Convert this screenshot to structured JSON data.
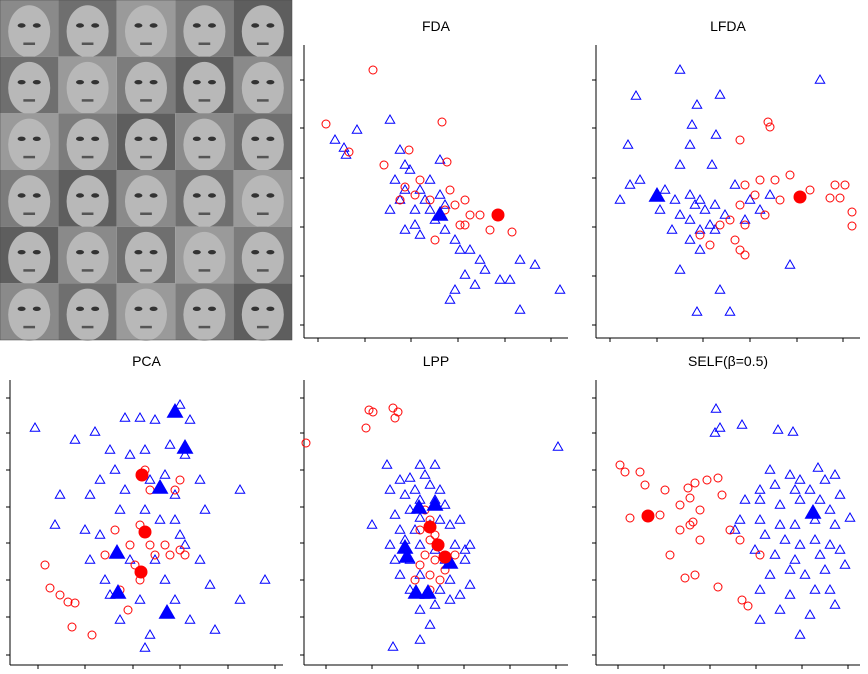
{
  "chart_data": [
    {
      "type": "scatter",
      "title": "FDA",
      "xlim": [
        0,
        264
      ],
      "ylim": [
        0,
        293
      ],
      "xticks": [
        14,
        61,
        107,
        154,
        201,
        247
      ],
      "yticks": [
        13,
        62,
        111,
        160,
        210,
        258
      ],
      "series": [
        {
          "color": "#0000ff",
          "marker": "triangle",
          "filled": false,
          "x": [
            31,
            40,
            53,
            42,
            86,
            96,
            101,
            91,
            106,
            116,
            121,
            111,
            126,
            136,
            131,
            101,
            116,
            141,
            151,
            156,
            166,
            176,
            181,
            171,
            151,
            161,
            196,
            206,
            216,
            231,
            256,
            216,
            146,
            96,
            86,
            101,
            136,
            126,
            141,
            111
          ],
          "y": [
            198,
            190,
            208,
            183,
            218,
            188,
            173,
            158,
            168,
            148,
            138,
            128,
            158,
            143,
            118,
            108,
            103,
            108,
            98,
            88,
            88,
            78,
            68,
            53,
            48,
            63,
            58,
            58,
            78,
            73,
            48,
            28,
            38,
            138,
            128,
            148,
            178,
            128,
            133,
            113
          ]
        },
        {
          "color": "#ff0000",
          "marker": "circle",
          "filled": false,
          "x": [
            69,
            22,
            45,
            80,
            105,
            138,
            143,
            116,
            101,
            126,
            141,
            151,
            161,
            166,
            156,
            176,
            186,
            208,
            131,
            96,
            111,
            146,
            161
          ],
          "y": [
            268,
            214,
            186,
            173,
            188,
            216,
            176,
            158,
            151,
            138,
            128,
            133,
            138,
            123,
            113,
            123,
            108,
            106,
            98,
            138,
            143,
            148,
            113
          ]
        },
        {
          "color": "#0000ff",
          "marker": "triangle",
          "filled": true,
          "x": [
            136
          ],
          "y": [
            123
          ]
        },
        {
          "color": "#ff0000",
          "marker": "circle",
          "filled": true,
          "x": [
            194
          ],
          "y": [
            123
          ]
        }
      ]
    },
    {
      "type": "scatter",
      "title": "LFDA",
      "xlim": [
        0,
        264
      ],
      "ylim": [
        0,
        293
      ],
      "xticks": [
        14,
        61,
        107,
        154,
        201,
        247
      ],
      "yticks": [
        13,
        62,
        111,
        160,
        210,
        258
      ],
      "series": [
        {
          "color": "#0000ff",
          "marker": "triangle",
          "filled": false,
          "x": [
            84,
            40,
            124,
            101,
            96,
            120,
            94,
            32,
            84,
            116,
            44,
            34,
            69,
            79,
            94,
            104,
            109,
            119,
            84,
            94,
            104,
            114,
            94,
            104,
            84,
            124,
            101,
            134,
            154,
            164,
            149,
            194,
            224,
            174,
            99,
            119,
            64,
            24,
            76,
            129,
            139
          ],
          "y": [
            268,
            242,
            243,
            233,
            213,
            203,
            193,
            193,
            173,
            173,
            158,
            153,
            148,
            138,
            143,
            138,
            128,
            133,
            123,
            118,
            108,
            113,
            98,
            88,
            68,
            48,
            26,
            26,
            138,
            128,
            118,
            73,
            258,
            143,
            133,
            108,
            128,
            138,
            108,
            123,
            153
          ]
        },
        {
          "color": "#ff0000",
          "marker": "circle",
          "filled": false,
          "x": [
            172,
            174,
            144,
            149,
            164,
            179,
            194,
            214,
            184,
            159,
            144,
            134,
            149,
            124,
            139,
            149,
            114,
            144,
            169,
            239,
            249,
            244,
            234,
            256,
            256,
            104
          ],
          "y": [
            216,
            211,
            198,
            153,
            158,
            158,
            163,
            148,
            138,
            143,
            133,
            118,
            113,
            113,
            98,
            83,
            93,
            88,
            123,
            153,
            153,
            140,
            140,
            126,
            112,
            103
          ]
        },
        {
          "color": "#0000ff",
          "marker": "triangle",
          "filled": true,
          "x": [
            61
          ],
          "y": [
            142
          ]
        },
        {
          "color": "#ff0000",
          "marker": "circle",
          "filled": true,
          "x": [
            204
          ],
          "y": [
            141
          ]
        }
      ]
    },
    {
      "type": "scatter",
      "title": "PCA",
      "xlim": [
        0,
        273
      ],
      "ylim": [
        0,
        285
      ],
      "xticks": [
        28,
        75,
        123,
        170,
        218,
        265
      ],
      "yticks": [
        10,
        48,
        85,
        122,
        158,
        195,
        232,
        267
      ],
      "series": [
        {
          "color": "#0000ff",
          "marker": "triangle",
          "filled": false,
          "x": [
            25,
            65,
            85,
            115,
            130,
            145,
            170,
            180,
            100,
            120,
            135,
            160,
            175,
            90,
            105,
            50,
            80,
            115,
            140,
            155,
            165,
            190,
            230,
            45,
            75,
            90,
            110,
            135,
            150,
            165,
            170,
            175,
            195,
            80,
            120,
            145,
            155,
            95,
            100,
            130,
            165,
            200,
            230,
            255,
            180,
            140,
            135,
            205,
            110,
            190
          ],
          "y": [
            237,
            225,
            233,
            247,
            247,
            245,
            260,
            245,
            215,
            210,
            215,
            220,
            210,
            185,
            195,
            170,
            170,
            175,
            185,
            190,
            170,
            185,
            175,
            140,
            135,
            130,
            155,
            155,
            145,
            145,
            130,
            120,
            155,
            105,
            105,
            105,
            85,
            85,
            70,
            65,
            65,
            80,
            65,
            85,
            45,
            30,
            17,
            35,
            45,
            105
          ]
        },
        {
          "color": "#ff0000",
          "marker": "circle",
          "filled": false,
          "x": [
            35,
            40,
            50,
            58,
            65,
            62,
            82,
            95,
            105,
            120,
            130,
            140,
            145,
            155,
            160,
            170,
            175,
            125,
            130,
            165,
            170,
            135,
            140,
            110,
            118
          ],
          "y": [
            100,
            77,
            70,
            63,
            62,
            38,
            30,
            110,
            135,
            120,
            140,
            120,
            110,
            120,
            110,
            115,
            110,
            100,
            85,
            175,
            185,
            195,
            175,
            75,
            55
          ]
        },
        {
          "color": "#0000ff",
          "marker": "triangle",
          "filled": true,
          "x": [
            165,
            175,
            150,
            107,
            108,
            157
          ],
          "y": [
            253,
            217,
            177,
            112,
            72,
            52
          ]
        },
        {
          "color": "#ff0000",
          "marker": "circle",
          "filled": true,
          "x": [
            132,
            135,
            131
          ],
          "y": [
            190,
            133,
            93
          ]
        }
      ]
    },
    {
      "type": "scatter",
      "title": "LPP",
      "xlim": [
        0,
        264
      ],
      "ylim": [
        0,
        285
      ],
      "xticks": [
        22,
        68,
        114,
        160,
        206,
        252
      ],
      "yticks": [
        10,
        48,
        85,
        122,
        158,
        195,
        232,
        267
      ],
      "series": [
        {
          "color": "#0000ff",
          "marker": "triangle",
          "filled": false,
          "x": [
            254,
            83,
            116,
            131,
            96,
            106,
            121,
            86,
            101,
            111,
            126,
            136,
            116,
            131,
            141,
            106,
            91,
            116,
            68,
            96,
            111,
            126,
            136,
            146,
            156,
            86,
            101,
            116,
            131,
            151,
            166,
            91,
            106,
            141,
            161,
            96,
            116,
            146,
            166,
            106,
            121,
            136,
            156,
            116,
            131,
            146,
            126,
            116,
            89,
            161
          ],
          "y": [
            218,
            200,
            200,
            200,
            185,
            187,
            190,
            175,
            170,
            175,
            180,
            175,
            165,
            165,
            160,
            155,
            150,
            147,
            140,
            135,
            135,
            140,
            145,
            140,
            145,
            120,
            125,
            120,
            115,
            120,
            120,
            105,
            105,
            105,
            105,
            90,
            90,
            85,
            80,
            75,
            70,
            75,
            70,
            55,
            60,
            65,
            40,
            25,
            18,
            115
          ]
        },
        {
          "color": "#ff0000",
          "marker": "circle",
          "filled": false,
          "x": [
            2,
            65,
            69,
            62,
            89,
            94,
            91,
            121,
            126,
            126,
            136,
            121,
            131,
            116,
            126,
            136,
            126,
            111,
            141,
            151,
            131,
            116
          ],
          "y": [
            222,
            255,
            253,
            237,
            257,
            253,
            247,
            155,
            145,
            125,
            120,
            110,
            105,
            100,
            90,
            85,
            75,
            85,
            95,
            110,
            130,
            135
          ]
        },
        {
          "color": "#0000ff",
          "marker": "triangle",
          "filled": true,
          "x": [
            115,
            131,
            101,
            103,
            146,
            112,
            124
          ],
          "y": [
            157,
            160,
            117,
            108,
            102,
            72,
            72
          ]
        },
        {
          "color": "#ff0000",
          "marker": "circle",
          "filled": true,
          "x": [
            126,
            134,
            141
          ],
          "y": [
            138,
            120,
            108
          ]
        }
      ]
    },
    {
      "type": "scatter",
      "title": "SELF(β=0.5)",
      "xlim": [
        0,
        264
      ],
      "ylim": [
        0,
        285
      ],
      "xticks": [
        22,
        68,
        114,
        160,
        206,
        252
      ],
      "yticks": [
        10,
        48,
        85,
        122,
        158,
        195,
        232,
        267
      ],
      "series": [
        {
          "color": "#0000ff",
          "marker": "triangle",
          "filled": false,
          "x": [
            120,
            119,
            124,
            146,
            182,
            197,
            174,
            194,
            204,
            222,
            229,
            239,
            164,
            179,
            199,
            214,
            224,
            244,
            149,
            164,
            184,
            204,
            234,
            254,
            144,
            164,
            184,
            199,
            219,
            239,
            169,
            189,
            204,
            219,
            234,
            159,
            179,
            199,
            224,
            244,
            174,
            194,
            209,
            229,
            249,
            164,
            194,
            219,
            234,
            184,
            214,
            239,
            204,
            164,
            139
          ],
          "y": [
            256,
            232,
            237,
            240,
            235,
            233,
            195,
            190,
            185,
            197,
            185,
            190,
            175,
            180,
            175,
            175,
            165,
            170,
            165,
            165,
            160,
            165,
            155,
            147,
            145,
            145,
            140,
            140,
            145,
            140,
            130,
            125,
            120,
            125,
            120,
            115,
            110,
            105,
            110,
            115,
            90,
            95,
            90,
            95,
            100,
            75,
            70,
            75,
            75,
            55,
            50,
            60,
            30,
            45,
            135
          ]
        },
        {
          "color": "#ff0000",
          "marker": "circle",
          "filled": false,
          "x": [
            24,
            29,
            44,
            49,
            69,
            92,
            99,
            94,
            111,
            122,
            126,
            84,
            104,
            64,
            94,
            84,
            97,
            104,
            74,
            134,
            144,
            164,
            89,
            99,
            122,
            146,
            152,
            34
          ],
          "y": [
            200,
            193,
            193,
            180,
            175,
            177,
            182,
            167,
            185,
            187,
            170,
            160,
            155,
            150,
            140,
            135,
            143,
            125,
            110,
            135,
            125,
            110,
            87,
            90,
            78,
            65,
            59,
            147
          ]
        },
        {
          "color": "#0000ff",
          "marker": "triangle",
          "filled": true,
          "x": [
            217
          ],
          "y": [
            152
          ]
        },
        {
          "color": "#ff0000",
          "marker": "circle",
          "filled": true,
          "x": [
            52
          ],
          "y": [
            149
          ]
        }
      ]
    }
  ]
}
